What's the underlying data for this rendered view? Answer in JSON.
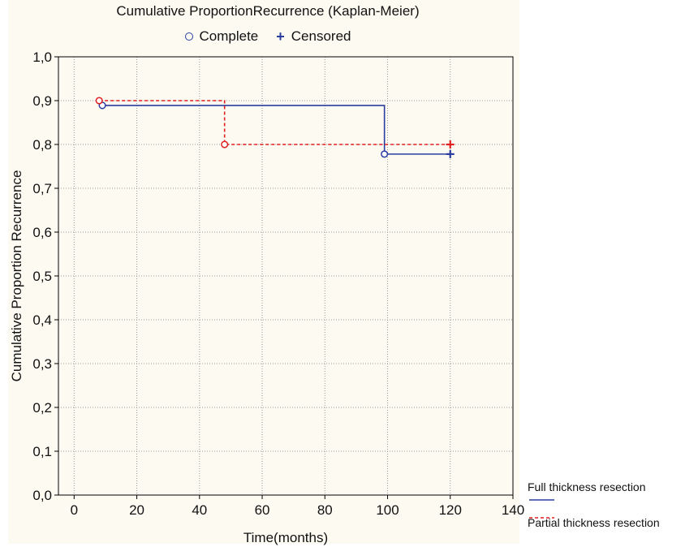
{
  "chart_data": {
    "type": "line",
    "title": "Cumulative ProportionRecurrence (Kaplan-Meier)",
    "xlabel": "Time(months)",
    "ylabel": "Cumulative Proportion Recurrence",
    "xlim": [
      -5,
      140
    ],
    "ylim": [
      0,
      1.0
    ],
    "x_ticks": [
      "0",
      "20",
      "40",
      "60",
      "80",
      "100",
      "120",
      "140"
    ],
    "y_ticks": [
      "0,0",
      "0,1",
      "0,2",
      "0,3",
      "0,4",
      "0,5",
      "0,6",
      "0,7",
      "0,8",
      "0,9",
      "1,0"
    ],
    "grid": true,
    "marker_legend": {
      "complete": "Complete",
      "censored": "Censored",
      "placement": "top-center"
    },
    "series": [
      {
        "name": "Full thickness resection",
        "color": "#2a3d9f",
        "line_style": "solid",
        "steps": [
          [
            9,
            0.889
          ],
          [
            99,
            0.889
          ],
          [
            99,
            0.778
          ],
          [
            120,
            0.778
          ]
        ],
        "complete_points": [
          [
            9,
            0.889
          ],
          [
            99,
            0.778
          ]
        ],
        "censored_points": [
          [
            120,
            0.778
          ]
        ]
      },
      {
        "name": "Partial thickness resection",
        "color": "#e02020",
        "line_style": "dashed",
        "steps": [
          [
            8,
            0.9
          ],
          [
            48,
            0.9
          ],
          [
            48,
            0.8
          ],
          [
            120,
            0.8
          ]
        ],
        "complete_points": [
          [
            8,
            0.9
          ],
          [
            48,
            0.8
          ]
        ],
        "censored_points": [
          [
            120,
            0.8
          ]
        ]
      }
    ],
    "series_legend_placement": "bottom-right"
  }
}
